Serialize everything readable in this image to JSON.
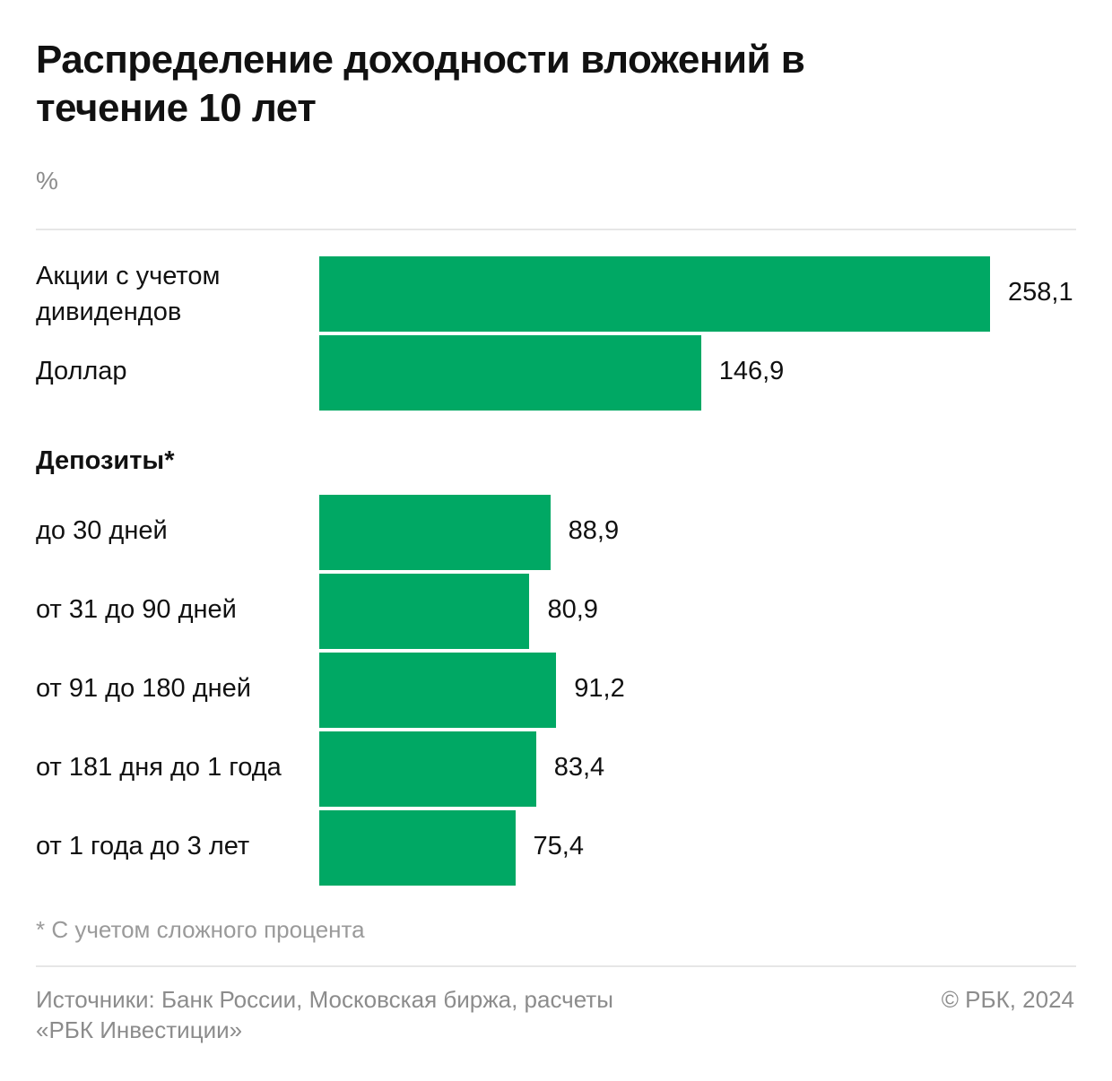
{
  "title": "Распределение доходности вложений в течение 10 лет",
  "unit": "%",
  "colors": {
    "bar": "#00a864",
    "text": "#111111",
    "muted": "#8c8c8c",
    "rule": "#e6e6e6"
  },
  "chart_data": {
    "type": "bar",
    "orientation": "horizontal",
    "title": "Распределение доходности вложений в течение 10 лет",
    "ylabel": "%",
    "xlim": [
      0,
      258.1
    ],
    "groups": [
      {
        "name": "",
        "categories": [
          "Акции с учетом дивидендов",
          "Доллар"
        ],
        "values": [
          258.1,
          146.9
        ],
        "value_labels": [
          "258,1",
          "146,9"
        ]
      },
      {
        "name": "Депозиты*",
        "categories": [
          "до 30 дней",
          "от 31 до 90 дней",
          "от 91 до 180 дней",
          "от 181 дня до 1 года",
          "от 1 года до 3 лет"
        ],
        "values": [
          88.9,
          80.9,
          91.2,
          83.4,
          75.4
        ],
        "value_labels": [
          "88,9",
          "80,9",
          "91,2",
          "83,4",
          "75,4"
        ]
      }
    ]
  },
  "footnote": "* С учетом сложного процента",
  "sources": "Источники: Банк России, Московская биржа, расчеты «РБК Инвестиции»",
  "copyright": "© РБК, 2024"
}
